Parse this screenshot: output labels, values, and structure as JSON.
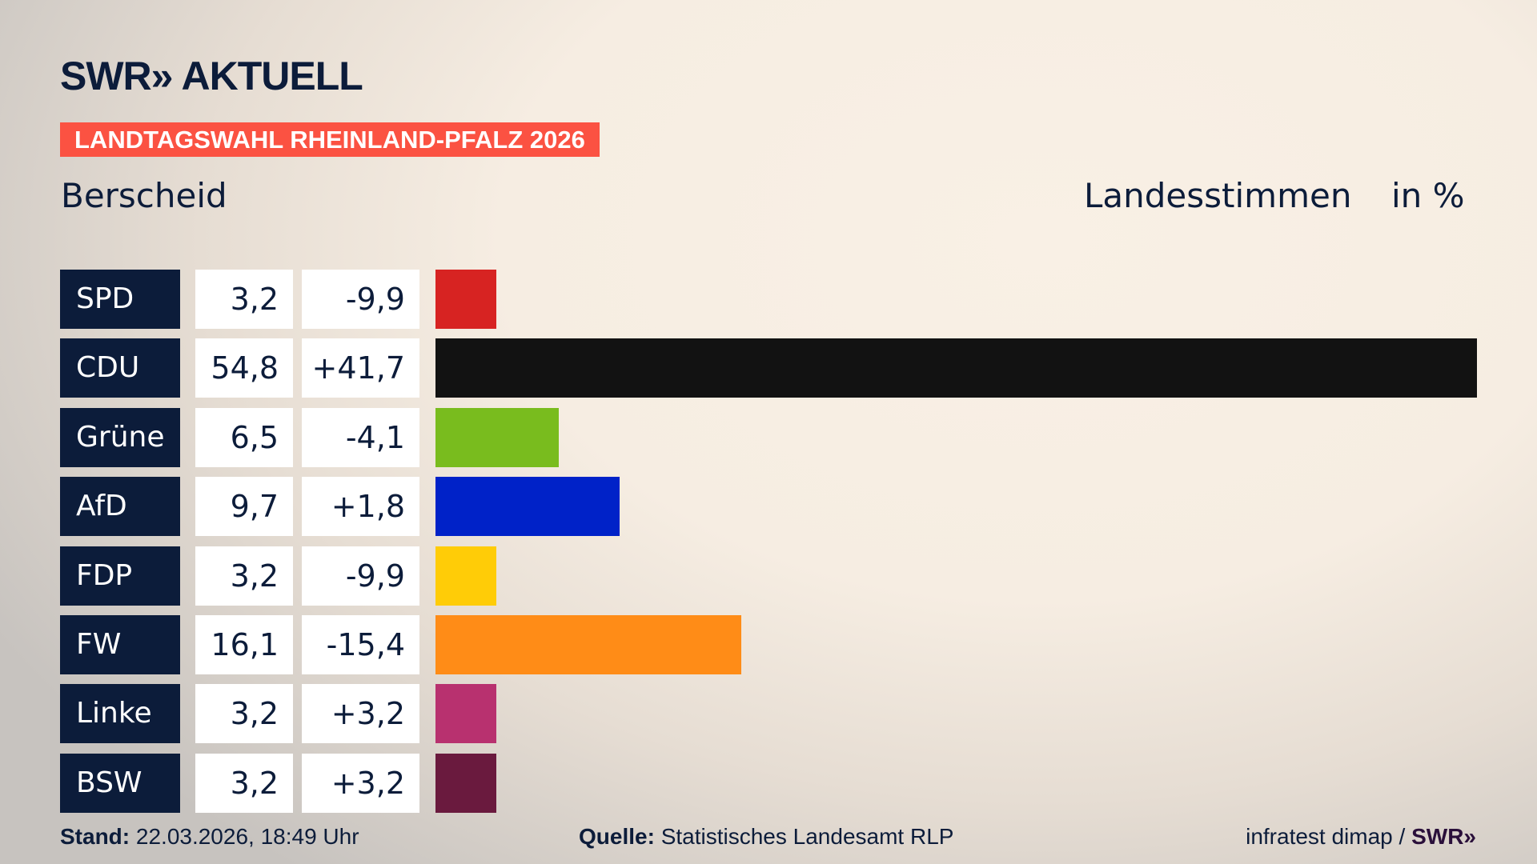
{
  "header": {
    "logo": "SWR» AKTUELL",
    "banner": "LANDTAGSWAHL RHEINLAND-PFALZ 2026",
    "place": "Berscheid",
    "mode": "Landesstimmen",
    "unit": "in %"
  },
  "chart_data": {
    "type": "bar",
    "orientation": "horizontal",
    "categories": [
      "SPD",
      "CDU",
      "Grüne",
      "AfD",
      "FDP",
      "FW",
      "Linke",
      "BSW"
    ],
    "values": [
      3.2,
      54.8,
      6.5,
      9.7,
      3.2,
      16.1,
      3.2,
      3.2
    ],
    "value_labels": [
      "3,2",
      "54,8",
      "6,5",
      "9,7",
      "3,2",
      "16,1",
      "3,2",
      "3,2"
    ],
    "diff_labels": [
      "-9,9",
      "+41,7",
      "-4,1",
      "+1,8",
      "-9,9",
      "-15,4",
      "+3,2",
      "+3,2"
    ],
    "colors": [
      "#d72322",
      "#121212",
      "#79bc1e",
      "#0022c8",
      "#ffcc07",
      "#ff8c17",
      "#b8316f",
      "#6a1a3e"
    ],
    "ylabel": "in %"
  },
  "footer": {
    "stand_label": "Stand:",
    "stand_value": " 22.03.2026, 18:49 Uhr",
    "source_label": "Quelle:",
    "source_value": " Statistisches Landesamt RLP",
    "credit": "infratest dimap / ",
    "credit_logo": "SWR»"
  }
}
